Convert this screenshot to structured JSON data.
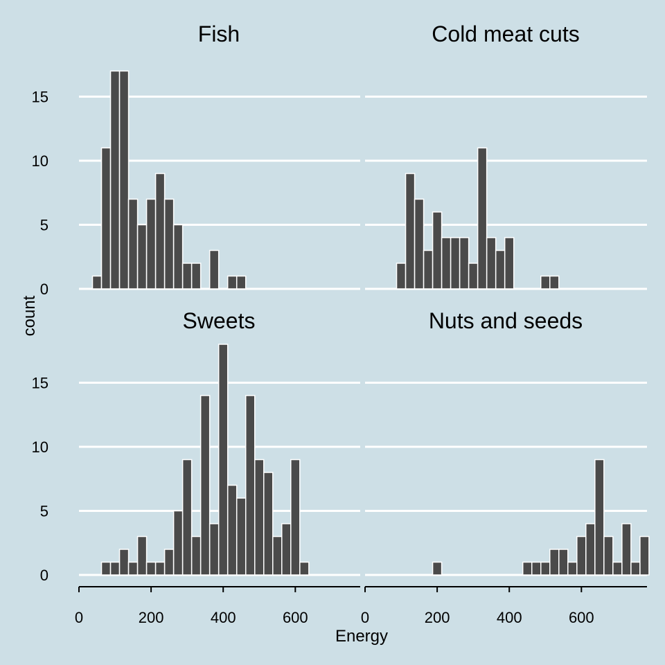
{
  "chart_data": {
    "type": "bar",
    "xlabel": "Energy",
    "ylabel": "count",
    "xlim": [
      0,
      780
    ],
    "ylim": [
      0,
      18.9
    ],
    "x_ticks": [
      0,
      200,
      400,
      600
    ],
    "y_ticks": [
      0,
      5,
      10,
      15
    ],
    "bin_width": 25,
    "grid": "horizontal",
    "colors": {
      "background": "#cddfe6",
      "bar_fill": "#4a4a4a",
      "bar_stroke": "#ffffff",
      "gridline": "#ffffff",
      "axis": "#000000"
    },
    "facets": [
      {
        "title": "Fish",
        "bins": [
          {
            "x": 50,
            "count": 1
          },
          {
            "x": 75,
            "count": 11
          },
          {
            "x": 100,
            "count": 17
          },
          {
            "x": 125,
            "count": 17
          },
          {
            "x": 150,
            "count": 7
          },
          {
            "x": 175,
            "count": 5
          },
          {
            "x": 200,
            "count": 7
          },
          {
            "x": 225,
            "count": 9
          },
          {
            "x": 250,
            "count": 7
          },
          {
            "x": 275,
            "count": 5
          },
          {
            "x": 300,
            "count": 2
          },
          {
            "x": 325,
            "count": 2
          },
          {
            "x": 375,
            "count": 3
          },
          {
            "x": 425,
            "count": 1
          },
          {
            "x": 450,
            "count": 1
          }
        ]
      },
      {
        "title": "Cold meat cuts",
        "bins": [
          {
            "x": 100,
            "count": 2
          },
          {
            "x": 125,
            "count": 9
          },
          {
            "x": 150,
            "count": 7
          },
          {
            "x": 175,
            "count": 3
          },
          {
            "x": 200,
            "count": 6
          },
          {
            "x": 225,
            "count": 4
          },
          {
            "x": 250,
            "count": 4
          },
          {
            "x": 275,
            "count": 4
          },
          {
            "x": 300,
            "count": 2
          },
          {
            "x": 325,
            "count": 11
          },
          {
            "x": 350,
            "count": 4
          },
          {
            "x": 375,
            "count": 3
          },
          {
            "x": 400,
            "count": 4
          },
          {
            "x": 500,
            "count": 1
          },
          {
            "x": 525,
            "count": 1
          }
        ]
      },
      {
        "title": "Sweets",
        "bins": [
          {
            "x": 75,
            "count": 1
          },
          {
            "x": 100,
            "count": 1
          },
          {
            "x": 125,
            "count": 2
          },
          {
            "x": 150,
            "count": 1
          },
          {
            "x": 175,
            "count": 3
          },
          {
            "x": 200,
            "count": 1
          },
          {
            "x": 225,
            "count": 1
          },
          {
            "x": 250,
            "count": 2
          },
          {
            "x": 275,
            "count": 5
          },
          {
            "x": 300,
            "count": 9
          },
          {
            "x": 325,
            "count": 3
          },
          {
            "x": 350,
            "count": 14
          },
          {
            "x": 375,
            "count": 4
          },
          {
            "x": 400,
            "count": 18
          },
          {
            "x": 425,
            "count": 7
          },
          {
            "x": 450,
            "count": 6
          },
          {
            "x": 475,
            "count": 14
          },
          {
            "x": 500,
            "count": 9
          },
          {
            "x": 525,
            "count": 8
          },
          {
            "x": 550,
            "count": 3
          },
          {
            "x": 575,
            "count": 4
          },
          {
            "x": 600,
            "count": 9
          },
          {
            "x": 625,
            "count": 1
          }
        ]
      },
      {
        "title": "Nuts and seeds",
        "bins": [
          {
            "x": 200,
            "count": 1
          },
          {
            "x": 450,
            "count": 1
          },
          {
            "x": 475,
            "count": 1
          },
          {
            "x": 500,
            "count": 1
          },
          {
            "x": 525,
            "count": 2
          },
          {
            "x": 550,
            "count": 2
          },
          {
            "x": 575,
            "count": 1
          },
          {
            "x": 600,
            "count": 3
          },
          {
            "x": 625,
            "count": 4
          },
          {
            "x": 650,
            "count": 9
          },
          {
            "x": 675,
            "count": 3
          },
          {
            "x": 700,
            "count": 1
          },
          {
            "x": 725,
            "count": 4
          },
          {
            "x": 750,
            "count": 1
          },
          {
            "x": 775,
            "count": 3
          }
        ]
      }
    ]
  }
}
